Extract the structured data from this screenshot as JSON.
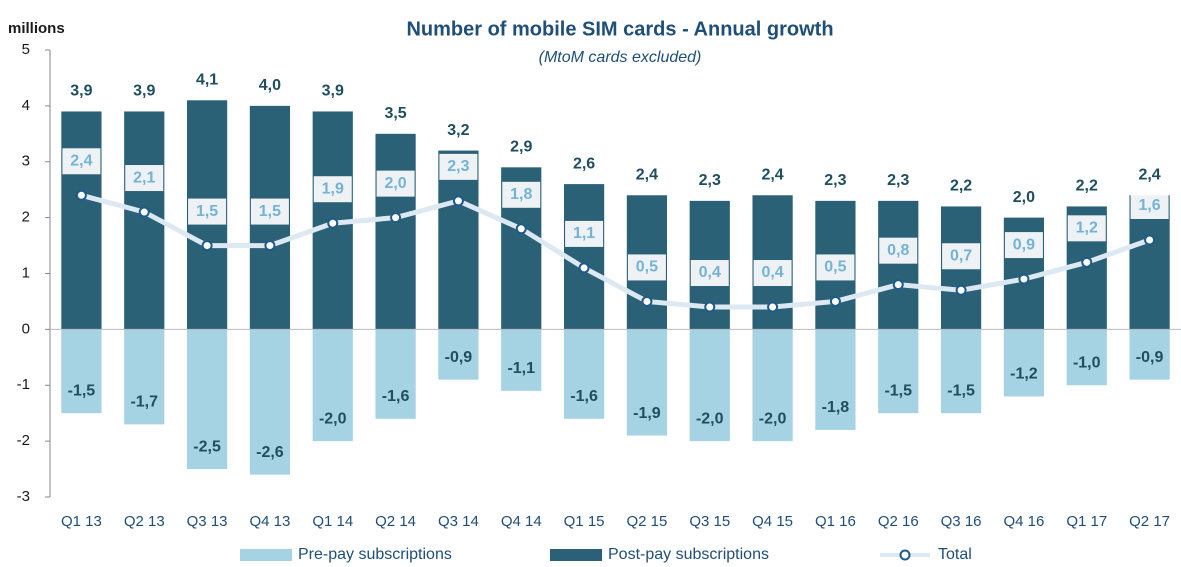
{
  "chart_data": {
    "type": "bar",
    "title": "Number of mobile SIM cards - Annual growth",
    "subtitle": "(MtoM cards excluded)",
    "y_label": "millions",
    "categories": [
      "Q1 13",
      "Q2 13",
      "Q3 13",
      "Q4 13",
      "Q1 14",
      "Q2 14",
      "Q3 14",
      "Q4 14",
      "Q1 15",
      "Q2 15",
      "Q3 15",
      "Q4 15",
      "Q1 16",
      "Q2 16",
      "Q3 16",
      "Q4 16",
      "Q1 17",
      "Q2 17"
    ],
    "series": [
      {
        "name": "Pre-pay subscriptions",
        "type": "bar",
        "color": "#a6d3e3",
        "values": [
          -1.5,
          -1.7,
          -2.5,
          -2.6,
          -2.0,
          -1.6,
          -0.9,
          -1.1,
          -1.6,
          -1.9,
          -2.0,
          -2.0,
          -1.8,
          -1.5,
          -1.5,
          -1.2,
          -1.0,
          -0.9
        ],
        "value_labels": [
          "-1,5",
          "-1,7",
          "-2,5",
          "-2,6",
          "-2,0",
          "-1,6",
          "-0,9",
          "-1,1",
          "-1,6",
          "-1,9",
          "-2,0",
          "-2,0",
          "-1,8",
          "-1,5",
          "-1,5",
          "-1,2",
          "-1,0",
          "-0,9"
        ]
      },
      {
        "name": "Post-pay subscriptions",
        "type": "bar",
        "color": "#2b6177",
        "values": [
          3.9,
          3.9,
          4.1,
          4.0,
          3.9,
          3.5,
          3.2,
          2.9,
          2.6,
          2.4,
          2.3,
          2.4,
          2.3,
          2.3,
          2.2,
          2.0,
          2.2,
          2.4
        ],
        "value_labels": [
          "3,9",
          "3,9",
          "4,1",
          "4,0",
          "3,9",
          "3,5",
          "3,2",
          "2,9",
          "2,6",
          "2,4",
          "2,3",
          "2,4",
          "2,3",
          "2,3",
          "2,2",
          "2,0",
          "2,2",
          "2,4"
        ]
      },
      {
        "name": "Total",
        "type": "line",
        "color": "#dce9f2",
        "values": [
          2.4,
          2.1,
          1.5,
          1.5,
          1.9,
          2.0,
          2.3,
          1.8,
          1.1,
          0.5,
          0.4,
          0.4,
          0.5,
          0.8,
          0.7,
          0.9,
          1.2,
          1.6
        ],
        "value_labels": [
          "2,4",
          "2,1",
          "1,5",
          "1,5",
          "1,9",
          "2,0",
          "2,3",
          "1,8",
          "1,1",
          "0,5",
          "0,4",
          "0,4",
          "0,5",
          "0,8",
          "0,7",
          "0,9",
          "1,2",
          "1,6"
        ]
      }
    ],
    "ylim": [
      -3,
      5
    ],
    "yticks": [
      -3,
      -2,
      -1,
      0,
      1,
      2,
      3,
      4,
      5
    ]
  }
}
